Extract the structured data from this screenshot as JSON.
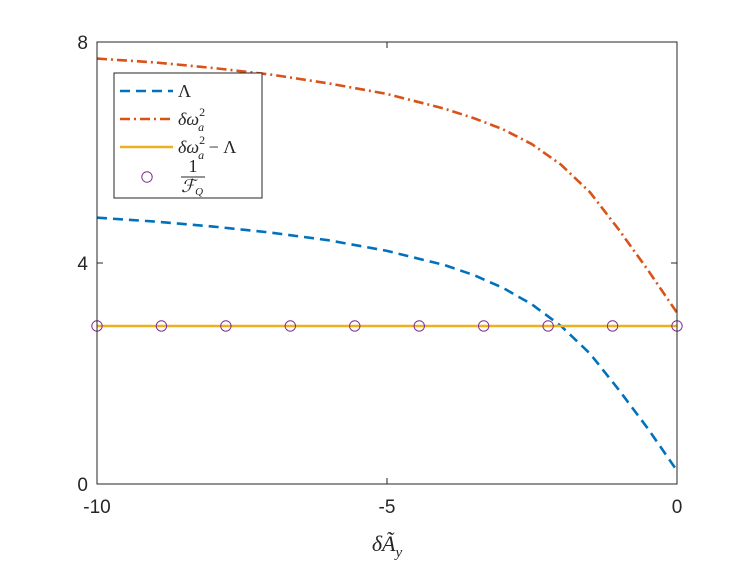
{
  "chart_data": {
    "type": "line",
    "xlabel": "δÃ",
    "xlabel_sub": "y",
    "xlim": [
      -10,
      0
    ],
    "ylim": [
      0,
      8
    ],
    "x_ticks": [
      -10,
      -5,
      0
    ],
    "x_tick_labels": [
      "-10",
      "-5",
      "0"
    ],
    "y_ticks": [
      0,
      4,
      8
    ],
    "y_tick_labels": [
      "0",
      "4",
      "8"
    ],
    "grid": false,
    "legend_position": "top-left",
    "legend": [
      {
        "id": "lambda",
        "label": "Λ"
      },
      {
        "id": "dw2",
        "label": "δω",
        "sup": "2",
        "sub": "a"
      },
      {
        "id": "diff",
        "label": "δω",
        "sup": "2",
        "sub": "a",
        "suffix": " − Λ"
      },
      {
        "id": "fq",
        "label_num": "1",
        "label_den": "ℱ",
        "label_den_sub": "Q"
      }
    ],
    "series": [
      {
        "id": "lambda",
        "color": "#0072BD",
        "style": "dashed",
        "x": [
          -10,
          -9,
          -8,
          -7,
          -6,
          -5,
          -4,
          -3.5,
          -3,
          -2.5,
          -2,
          -1.5,
          -1,
          -0.5,
          0
        ],
        "values": [
          4.82,
          4.75,
          4.66,
          4.55,
          4.41,
          4.22,
          3.96,
          3.78,
          3.55,
          3.25,
          2.86,
          2.36,
          1.7,
          1.0,
          0.24
        ]
      },
      {
        "id": "dw2",
        "color": "#D95319",
        "style": "dashdot",
        "x": [
          -10,
          -9,
          -8,
          -7,
          -6,
          -5,
          -4,
          -3.5,
          -3,
          -2.5,
          -2,
          -1.5,
          -1,
          -0.5,
          0
        ],
        "values": [
          7.7,
          7.63,
          7.53,
          7.41,
          7.25,
          7.06,
          6.79,
          6.62,
          6.42,
          6.15,
          5.78,
          5.28,
          4.6,
          3.87,
          3.1
        ]
      },
      {
        "id": "diff",
        "color": "#EDB120",
        "style": "solid",
        "x": [
          -10,
          0
        ],
        "values": [
          2.86,
          2.86
        ]
      },
      {
        "id": "fq",
        "color": "#7E2F8E",
        "style": "markers-circle",
        "x": [
          -10,
          -8.889,
          -7.778,
          -6.667,
          -5.556,
          -4.444,
          -3.333,
          -2.222,
          -1.111,
          0
        ],
        "values": [
          2.86,
          2.86,
          2.86,
          2.86,
          2.86,
          2.86,
          2.86,
          2.86,
          2.86,
          2.86
        ]
      }
    ]
  }
}
